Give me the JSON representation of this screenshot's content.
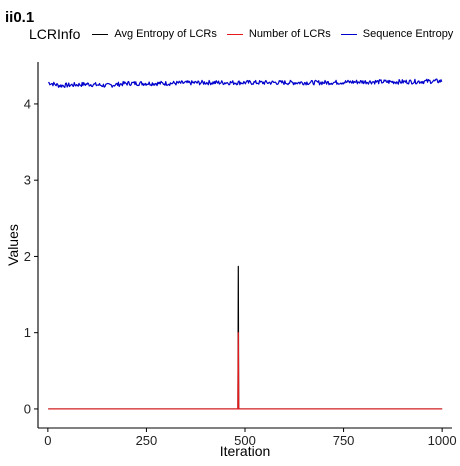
{
  "chart_data": {
    "type": "line",
    "title": "ii0.1",
    "xlabel": "Iteration",
    "ylabel": "Values",
    "xlim": [
      -25,
      1025
    ],
    "ylim": [
      -0.25,
      4.55
    ],
    "x_ticks": [
      0,
      250,
      500,
      750,
      1000
    ],
    "y_ticks": [
      0,
      1,
      2,
      3,
      4
    ],
    "x_tick_labels": [
      "0",
      "250",
      "500",
      "750",
      "1000"
    ],
    "y_tick_labels": [
      "0",
      "1",
      "2",
      "3",
      "4"
    ],
    "grid": false,
    "legend_title": "LCRInfo",
    "legend_position": "top",
    "series": [
      {
        "name": "Avg Entropy of LCRs",
        "color": "#000000",
        "points": [
          [
            1,
            0
          ],
          [
            482,
            0
          ],
          [
            483,
            1.87
          ],
          [
            484,
            0
          ],
          [
            1000,
            0
          ]
        ]
      },
      {
        "name": "Number of LCRs",
        "color": "#e41a1c",
        "points": [
          [
            1,
            0
          ],
          [
            482,
            0
          ],
          [
            483,
            1.0
          ],
          [
            484,
            0
          ],
          [
            1000,
            0
          ]
        ]
      },
      {
        "name": "Sequence Entropy",
        "color": "#0000cc",
        "baseline": 4.28,
        "noise_amplitude": 0.03,
        "points": [
          [
            1,
            4.28
          ],
          [
            30,
            4.24
          ],
          [
            100,
            4.26
          ],
          [
            150,
            4.24
          ],
          [
            200,
            4.27
          ],
          [
            300,
            4.27
          ],
          [
            400,
            4.28
          ],
          [
            500,
            4.28
          ],
          [
            600,
            4.28
          ],
          [
            700,
            4.28
          ],
          [
            800,
            4.29
          ],
          [
            900,
            4.29
          ],
          [
            1000,
            4.3
          ]
        ]
      }
    ]
  }
}
